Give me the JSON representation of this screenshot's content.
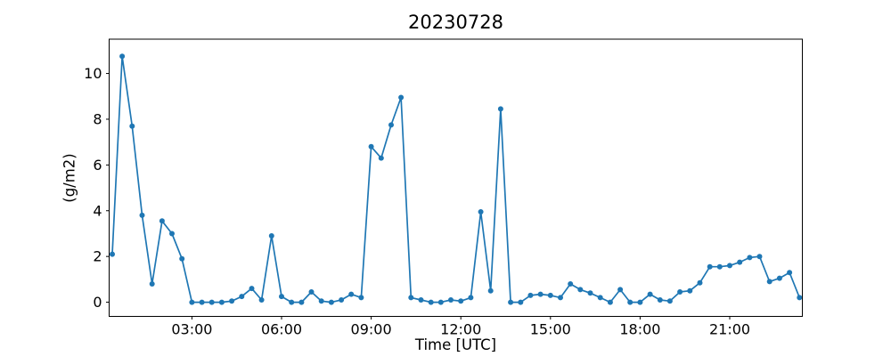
{
  "chart_data": {
    "type": "line",
    "title": "20230728",
    "xlabel": "Time [UTC]",
    "ylabel": "(g/m2)",
    "grid": false,
    "legend": null,
    "line_color": "#1f77b4",
    "marker": "dot",
    "x_times": [
      "00:20",
      "00:40",
      "01:00",
      "01:20",
      "01:40",
      "02:00",
      "02:20",
      "02:40",
      "03:00",
      "03:20",
      "03:40",
      "04:00",
      "04:20",
      "04:40",
      "05:00",
      "05:20",
      "05:40",
      "06:00",
      "06:20",
      "06:40",
      "07:00",
      "07:20",
      "07:40",
      "08:00",
      "08:20",
      "08:40",
      "09:00",
      "09:20",
      "09:40",
      "10:00",
      "10:20",
      "10:40",
      "11:00",
      "11:20",
      "11:40",
      "12:00",
      "12:20",
      "12:40",
      "13:00",
      "13:20",
      "13:40",
      "14:00",
      "14:20",
      "14:40",
      "15:00",
      "15:20",
      "15:40",
      "16:00",
      "16:20",
      "16:40",
      "17:00",
      "17:20",
      "17:40",
      "18:00",
      "18:20",
      "18:40",
      "19:00",
      "19:20",
      "19:40",
      "20:00",
      "20:20",
      "20:40",
      "21:00",
      "21:20",
      "21:40",
      "22:00",
      "22:20",
      "22:40",
      "23:00",
      "23:20"
    ],
    "values": [
      2.1,
      10.75,
      7.7,
      3.8,
      0.8,
      3.55,
      3.0,
      1.9,
      0.0,
      0.0,
      0.0,
      0.0,
      0.05,
      0.25,
      0.6,
      0.1,
      2.9,
      0.25,
      0.0,
      0.0,
      0.45,
      0.05,
      0.0,
      0.1,
      0.35,
      0.2,
      6.8,
      6.3,
      7.75,
      8.95,
      0.2,
      0.1,
      0.0,
      0.0,
      0.1,
      0.05,
      0.2,
      3.95,
      0.5,
      8.45,
      0.0,
      0.0,
      0.3,
      0.35,
      0.3,
      0.2,
      0.8,
      0.55,
      0.4,
      0.2,
      0.0,
      0.55,
      0.0,
      0.0,
      0.35,
      0.1,
      0.05,
      0.45,
      0.5,
      0.85,
      1.55,
      1.55,
      1.6,
      1.75,
      1.95,
      2.0,
      0.9,
      1.05,
      1.3,
      0.2
    ],
    "xticks": {
      "hours": [
        3,
        6,
        9,
        12,
        15,
        18,
        21
      ],
      "labels": [
        "03:00",
        "06:00",
        "09:00",
        "12:00",
        "15:00",
        "18:00",
        "21:00"
      ]
    },
    "yticks": [
      0,
      2,
      4,
      6,
      8,
      10
    ],
    "ylim": [
      -0.62,
      11.5
    ],
    "xlim_hours": [
      0.23,
      23.43
    ]
  }
}
